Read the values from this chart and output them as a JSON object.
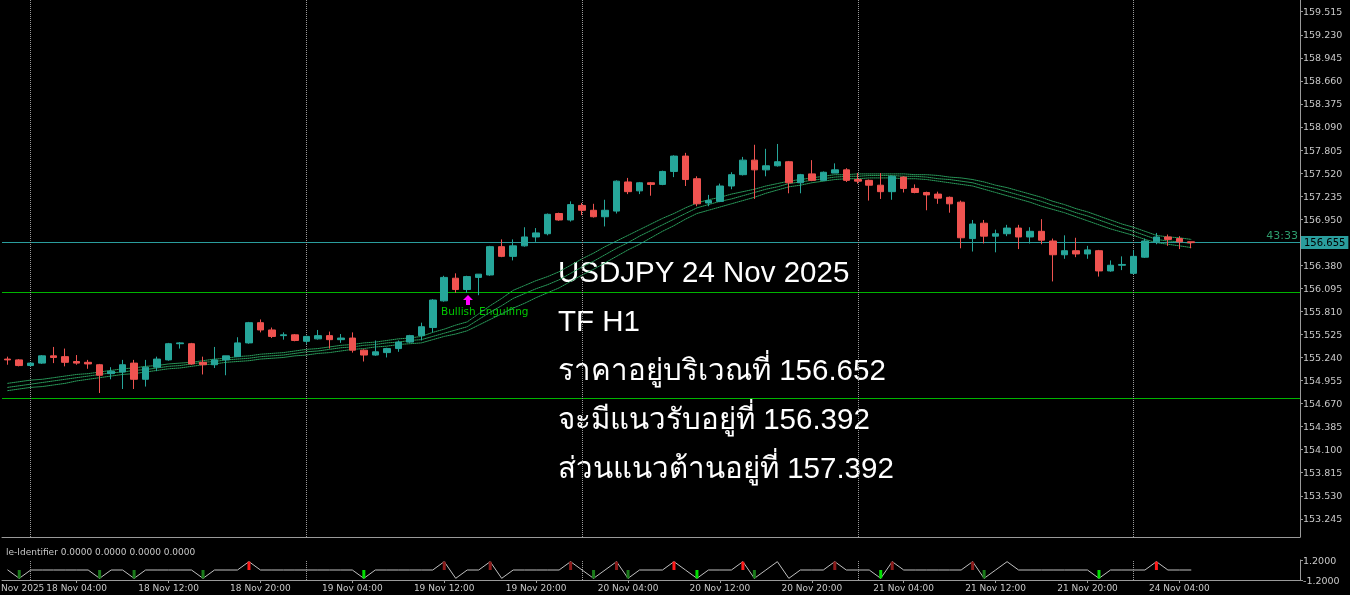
{
  "chart_data": [
    {
      "type": "candlestick",
      "categories": [
        null,
        null,
        null,
        null,
        null,
        null,
        null,
        null,
        null,
        null,
        null,
        null,
        null,
        null,
        null,
        null,
        null,
        null,
        null,
        null,
        null,
        null,
        null,
        null,
        null,
        null,
        null,
        null,
        null,
        null,
        null,
        null,
        null,
        null,
        null,
        null,
        null,
        null,
        null,
        null,
        null,
        null,
        null,
        null,
        null,
        null,
        null,
        null,
        null,
        null,
        null,
        null,
        null,
        null,
        null,
        null,
        null,
        null,
        null,
        null,
        null,
        null,
        null,
        null,
        null,
        null,
        null,
        null,
        null,
        null,
        null,
        null,
        null,
        null,
        null,
        null,
        null,
        null,
        null,
        null,
        null,
        null,
        null,
        null,
        null,
        null,
        null,
        null,
        null,
        null,
        null,
        null,
        null,
        null,
        null,
        null,
        null,
        null,
        null,
        null,
        null,
        null,
        null,
        null,
        null,
        null,
        null,
        null,
        null,
        null,
        null,
        null,
        null
      ],
      "ohlc": [
        [
          155.22,
          155.25,
          155.15,
          155.21
        ],
        [
          155.21,
          155.22,
          155.13,
          155.14
        ],
        [
          155.14,
          155.18,
          155.13,
          155.17
        ],
        [
          155.17,
          155.27,
          155.16,
          155.26
        ],
        [
          155.26,
          155.37,
          155.17,
          155.24
        ],
        [
          155.25,
          155.35,
          155.13,
          155.18
        ],
        [
          155.19,
          155.27,
          155.15,
          155.17
        ],
        [
          155.18,
          155.21,
          155.1,
          155.16
        ],
        [
          155.15,
          155.16,
          154.8,
          155.02
        ],
        [
          155.04,
          155.12,
          154.97,
          155.07
        ],
        [
          155.06,
          155.21,
          154.85,
          155.15
        ],
        [
          155.17,
          155.21,
          154.85,
          154.97
        ],
        [
          154.97,
          155.21,
          154.88,
          155.12
        ],
        [
          155.12,
          155.25,
          155.07,
          155.22
        ],
        [
          155.21,
          155.42,
          155.2,
          155.41
        ],
        [
          155.41,
          155.43,
          155.35,
          155.42
        ],
        [
          155.41,
          155.42,
          155.15,
          155.16
        ],
        [
          155.18,
          155.25,
          155.03,
          155.15
        ],
        [
          155.15,
          155.37,
          155.11,
          155.21
        ],
        [
          155.21,
          155.26,
          155.02,
          155.26
        ],
        [
          155.25,
          155.49,
          155.25,
          155.42
        ],
        [
          155.42,
          155.68,
          155.41,
          155.67
        ],
        [
          155.67,
          155.71,
          155.55,
          155.58
        ],
        [
          155.58,
          155.61,
          155.48,
          155.5
        ],
        [
          155.51,
          155.55,
          155.46,
          155.52
        ],
        [
          155.52,
          155.53,
          155.44,
          155.45
        ],
        [
          155.44,
          155.51,
          155.41,
          155.5
        ],
        [
          155.47,
          155.58,
          155.46,
          155.51
        ],
        [
          155.51,
          155.56,
          155.35,
          155.46
        ],
        [
          155.46,
          155.53,
          155.42,
          155.48
        ],
        [
          155.48,
          155.55,
          155.3,
          155.33
        ],
        [
          155.33,
          155.34,
          155.19,
          155.27
        ],
        [
          155.27,
          155.45,
          155.26,
          155.31
        ],
        [
          155.3,
          155.36,
          155.24,
          155.35
        ],
        [
          155.35,
          155.45,
          155.31,
          155.43
        ],
        [
          155.43,
          155.52,
          155.42,
          155.51
        ],
        [
          155.51,
          155.67,
          155.45,
          155.62
        ],
        [
          155.61,
          155.96,
          155.55,
          155.95
        ],
        [
          155.94,
          156.25,
          155.93,
          156.23
        ],
        [
          156.22,
          156.28,
          156.04,
          156.08
        ],
        [
          156.08,
          156.25,
          156.04,
          156.24
        ],
        [
          156.23,
          156.27,
          156.01,
          156.27
        ],
        [
          156.26,
          156.62,
          156.25,
          156.61
        ],
        [
          156.61,
          156.7,
          156.48,
          156.49
        ],
        [
          156.49,
          156.7,
          156.44,
          156.62
        ],
        [
          156.62,
          156.85,
          156.61,
          156.73
        ],
        [
          156.73,
          156.84,
          156.67,
          156.78
        ],
        [
          156.77,
          157.02,
          156.75,
          157.01
        ],
        [
          157.02,
          157.03,
          156.93,
          156.94
        ],
        [
          156.94,
          157.17,
          156.92,
          157.13
        ],
        [
          157.12,
          157.15,
          157.0,
          157.06
        ],
        [
          157.06,
          157.14,
          156.97,
          156.98
        ],
        [
          156.98,
          157.19,
          156.86,
          157.06
        ],
        [
          157.05,
          157.43,
          157.02,
          157.42
        ],
        [
          157.41,
          157.46,
          157.26,
          157.29
        ],
        [
          157.3,
          157.41,
          157.26,
          157.4
        ],
        [
          157.4,
          157.41,
          157.24,
          157.38
        ],
        [
          157.38,
          157.55,
          157.37,
          157.54
        ],
        [
          157.54,
          157.74,
          157.47,
          157.73
        ],
        [
          157.73,
          157.77,
          157.36,
          157.44
        ],
        [
          157.45,
          157.48,
          157.11,
          157.14
        ],
        [
          157.15,
          157.25,
          157.11,
          157.18
        ],
        [
          157.17,
          157.39,
          157.16,
          157.36
        ],
        [
          157.36,
          157.53,
          157.32,
          157.5
        ],
        [
          157.5,
          157.72,
          157.49,
          157.68
        ],
        [
          157.68,
          157.87,
          157.2,
          157.56
        ],
        [
          157.56,
          157.82,
          157.48,
          157.61
        ],
        [
          157.61,
          157.88,
          157.6,
          157.66
        ],
        [
          157.66,
          157.67,
          157.27,
          157.4
        ],
        [
          157.4,
          157.51,
          157.27,
          157.5
        ],
        [
          157.51,
          157.68,
          157.42,
          157.43
        ],
        [
          157.43,
          157.54,
          157.42,
          157.53
        ],
        [
          157.52,
          157.64,
          157.52,
          157.56
        ],
        [
          157.56,
          157.58,
          157.41,
          157.43
        ],
        [
          157.44,
          157.52,
          157.39,
          157.42
        ],
        [
          157.43,
          157.44,
          157.18,
          157.37
        ],
        [
          157.37,
          157.52,
          157.2,
          157.29
        ],
        [
          157.29,
          157.49,
          157.19,
          157.48
        ],
        [
          157.47,
          157.48,
          157.28,
          157.33
        ],
        [
          157.33,
          157.38,
          157.27,
          157.28
        ],
        [
          157.28,
          157.29,
          157.06,
          157.25
        ],
        [
          157.26,
          157.29,
          157.14,
          157.21
        ],
        [
          157.22,
          157.23,
          157.03,
          157.14
        ],
        [
          157.16,
          157.18,
          156.59,
          156.72
        ],
        [
          156.71,
          156.94,
          156.55,
          156.89
        ],
        [
          156.9,
          156.94,
          156.65,
          156.74
        ],
        [
          156.74,
          156.82,
          156.54,
          156.77
        ],
        [
          156.77,
          156.88,
          156.74,
          156.84
        ],
        [
          156.84,
          156.88,
          156.58,
          156.73
        ],
        [
          156.73,
          156.85,
          156.65,
          156.8
        ],
        [
          156.8,
          156.95,
          156.64,
          156.69
        ],
        [
          156.68,
          156.71,
          156.18,
          156.51
        ],
        [
          156.51,
          156.75,
          156.46,
          156.56
        ],
        [
          156.56,
          156.72,
          156.48,
          156.52
        ],
        [
          156.52,
          156.62,
          156.46,
          156.57
        ],
        [
          156.56,
          156.57,
          156.24,
          156.31
        ],
        [
          156.31,
          156.44,
          156.3,
          156.38
        ],
        [
          156.38,
          156.49,
          156.32,
          156.39
        ],
        [
          156.28,
          156.57,
          156.27,
          156.49
        ],
        [
          156.48,
          156.71,
          156.47,
          156.68
        ],
        [
          156.67,
          156.78,
          156.64,
          156.73
        ],
        [
          156.73,
          156.76,
          156.62,
          156.7
        ],
        [
          156.71,
          156.74,
          156.58,
          156.67
        ],
        [
          156.67,
          156.67,
          156.59,
          156.66
        ],
        null,
        null,
        null,
        null,
        null,
        null,
        null,
        null,
        null
      ],
      "series": [
        {
          "type": "line",
          "color": "#2a9d5c",
          "line_style": "dotted",
          "values": [
            154.92,
            154.94,
            154.96,
            154.97,
            154.99,
            155.01,
            155.03,
            155.04,
            155.06,
            155.08,
            155.1,
            155.11,
            155.13,
            155.14,
            155.16,
            155.17,
            155.18,
            155.2,
            155.22,
            155.23,
            155.25,
            155.26,
            155.28,
            155.29,
            155.3,
            155.32,
            155.34,
            155.35,
            155.37,
            155.39,
            155.4,
            155.42,
            155.43,
            155.45,
            155.47,
            155.48,
            155.5,
            155.55,
            155.59,
            155.64,
            155.68,
            155.78,
            155.88,
            155.97,
            156.07,
            156.13,
            156.19,
            156.24,
            156.3,
            156.38,
            156.46,
            156.53,
            156.61,
            156.68,
            156.75,
            156.82,
            156.89,
            156.96,
            157.02,
            157.09,
            157.15,
            157.19,
            157.22,
            157.26,
            157.29,
            157.32,
            157.36,
            157.39,
            157.42,
            157.44,
            157.46,
            157.48,
            157.5,
            157.5,
            157.51,
            157.51,
            157.51,
            157.51,
            157.51,
            157.5,
            157.5,
            157.49,
            157.47,
            157.46,
            157.44,
            157.41,
            157.37,
            157.34,
            157.3,
            157.26,
            157.22,
            157.17,
            157.13,
            157.08,
            157.04,
            156.99,
            156.94,
            156.89,
            156.85,
            156.8,
            156.75,
            156.73,
            156.72,
            156.7,
            null,
            null,
            null,
            null,
            null,
            null,
            null,
            null,
            null
          ]
        },
        {
          "type": "line",
          "color": "#2a9d5c",
          "line_style": "dotted",
          "values": [
            154.87,
            154.89,
            154.91,
            154.93,
            154.95,
            154.97,
            154.99,
            155.01,
            155.03,
            155.05,
            155.06,
            155.08,
            155.09,
            155.11,
            155.13,
            155.14,
            155.16,
            155.18,
            155.19,
            155.21,
            155.22,
            155.23,
            155.25,
            155.26,
            155.27,
            155.29,
            155.31,
            155.32,
            155.34,
            155.36,
            155.37,
            155.39,
            155.4,
            155.42,
            155.43,
            155.45,
            155.46,
            155.5,
            155.54,
            155.58,
            155.62,
            155.71,
            155.8,
            155.88,
            155.97,
            156.03,
            156.09,
            156.14,
            156.2,
            156.28,
            156.36,
            156.43,
            156.51,
            156.59,
            156.66,
            156.74,
            156.81,
            156.88,
            156.95,
            157.02,
            157.09,
            157.13,
            157.17,
            157.2,
            157.24,
            157.28,
            157.32,
            157.35,
            157.39,
            157.41,
            157.43,
            157.45,
            157.47,
            157.48,
            157.48,
            157.49,
            157.49,
            157.49,
            157.48,
            157.48,
            157.47,
            157.45,
            157.44,
            157.42,
            157.4,
            157.36,
            157.33,
            157.29,
            157.25,
            157.21,
            157.17,
            157.12,
            157.08,
            157.03,
            156.99,
            156.94,
            156.89,
            156.84,
            156.8,
            156.75,
            156.7,
            156.68,
            156.67,
            156.65,
            null,
            null,
            null,
            null,
            null,
            null,
            null,
            null,
            null
          ]
        },
        {
          "type": "line",
          "color": "#2a9d5c",
          "line_style": "dotted",
          "values": [
            154.83,
            154.85,
            154.87,
            154.88,
            154.9,
            154.92,
            154.95,
            154.97,
            154.99,
            155.01,
            155.03,
            155.04,
            155.06,
            155.08,
            155.1,
            155.11,
            155.13,
            155.15,
            155.16,
            155.18,
            155.19,
            155.2,
            155.22,
            155.23,
            155.24,
            155.26,
            155.27,
            155.29,
            155.3,
            155.32,
            155.34,
            155.35,
            155.37,
            155.38,
            155.4,
            155.41,
            155.42,
            155.46,
            155.5,
            155.53,
            155.57,
            155.64,
            155.71,
            155.78,
            155.85,
            155.91,
            155.98,
            156.04,
            156.1,
            156.18,
            156.26,
            156.33,
            156.41,
            156.49,
            156.57,
            156.64,
            156.72,
            156.8,
            156.87,
            156.95,
            157.02,
            157.06,
            157.1,
            157.14,
            157.18,
            157.22,
            157.27,
            157.31,
            157.35,
            157.37,
            157.4,
            157.42,
            157.44,
            157.45,
            157.45,
            157.46,
            157.46,
            157.46,
            157.45,
            157.45,
            157.44,
            157.42,
            157.4,
            157.38,
            157.36,
            157.32,
            157.28,
            157.24,
            157.2,
            157.16,
            157.11,
            157.07,
            157.03,
            156.98,
            156.93,
            156.88,
            156.83,
            156.79,
            156.75,
            156.7,
            156.66,
            156.64,
            156.62,
            156.6,
            null,
            null,
            null,
            null,
            null,
            null,
            null,
            null,
            null
          ]
        }
      ],
      "tick_labels": "y",
      "grid": "x",
      "ylim": [
        153.02,
        159.66
      ],
      "yticks": [
        153.245,
        {
          "value": 153.53,
          "label": "153.530"
        },
        153.815,
        {
          "value": 154.1,
          "label": "154.100"
        },
        154.385,
        {
          "value": 154.67,
          "label": "154.670"
        },
        154.955,
        {
          "value": 155.24,
          "label": "155.240"
        },
        155.525,
        {
          "value": 155.81,
          "label": "155.810"
        },
        156.095,
        {
          "value": 156.38,
          "label": "156.380"
        },
        {
          "value": 156.95,
          "label": "156.950"
        },
        157.235,
        {
          "value": 157.52,
          "label": "157.520"
        },
        157.805,
        {
          "value": 158.09,
          "label": "158.090"
        },
        158.375,
        {
          "value": 158.66,
          "label": "158.660"
        },
        158.945,
        {
          "value": 159.23,
          "label": "159.230"
        },
        159.515
      ],
      "ref_lines": [
        {
          "axis": "y",
          "value": 156.655,
          "label": "156.655",
          "color": "#2a9d9d"
        },
        {
          "axis": "y",
          "value": 156.05,
          "color": "#00b400"
        },
        {
          "axis": "y",
          "value": 154.73,
          "color": "#00b400"
        }
      ],
      "annotations": [
        "USDJPY 24 Nov 2025",
        "TF H1",
        "ราคาอยู่บริเวณที่ 156.652",
        "จะมีแนวรับอยู่ที่ 156.392",
        "ส่วนแนวต้านอยู่ที่ 157.392",
        "Bullish Engulfing",
        {
          "text": "43:33",
          "y": 156.655
        }
      ]
    },
    {
      "type": "line",
      "title": "le-Identifier 0.0000 0.0000 0.0000 0.0000",
      "categories": [
        null,
        null,
        null,
        null,
        null,
        null,
        "18 Nov 04:00",
        null,
        null,
        null,
        null,
        null,
        null,
        null,
        "18 Nov 12:00",
        null,
        null,
        null,
        null,
        null,
        null,
        null,
        "18 Nov 20:00",
        null,
        null,
        null,
        null,
        null,
        null,
        null,
        "19 Nov 04:00",
        null,
        null,
        null,
        null,
        null,
        null,
        null,
        "19 Nov 12:00",
        null,
        null,
        null,
        null,
        null,
        null,
        null,
        "19 Nov 20:00",
        null,
        null,
        null,
        null,
        null,
        null,
        null,
        "20 Nov 04:00",
        null,
        null,
        null,
        null,
        null,
        null,
        null,
        "20 Nov 12:00",
        null,
        null,
        null,
        null,
        null,
        null,
        null,
        "20 Nov 20:00",
        null,
        null,
        null,
        null,
        null,
        null,
        null,
        "21 Nov 04:00",
        null,
        null,
        null,
        null,
        null,
        null,
        null,
        "21 Nov 12:00",
        null,
        null,
        null,
        null,
        null,
        null,
        null,
        "21 Nov 20:00",
        null,
        null,
        null,
        null,
        null,
        null,
        null,
        "24 Nov 04:00",
        null,
        null,
        null,
        null,
        null,
        null,
        null,
        null,
        null,
        null
      ],
      "series": [
        {
          "type": "line",
          "color": "#c0c0c0",
          "values": [
            0,
            -1,
            0,
            0,
            0,
            0,
            0,
            0,
            -1,
            0,
            0,
            -1,
            0,
            0,
            0,
            0,
            0,
            -1,
            0,
            0,
            0,
            1,
            0,
            0,
            0,
            0,
            0,
            0,
            0,
            0,
            0,
            -1,
            0,
            0,
            0,
            0,
            0,
            0,
            1,
            -1,
            0,
            0,
            1,
            -1,
            0,
            0,
            0,
            0,
            0,
            1,
            0,
            -1,
            0,
            1,
            -1,
            0,
            0,
            0,
            1,
            0,
            -1,
            0,
            0,
            0,
            1,
            -1,
            0,
            1,
            -1,
            0,
            0,
            0,
            1,
            0,
            0,
            0,
            -1,
            1,
            0,
            0,
            0,
            0,
            0,
            0,
            1,
            -1,
            0,
            1,
            0,
            0,
            0,
            0,
            0,
            0,
            0,
            -1,
            0,
            0,
            0,
            0,
            1,
            0,
            0,
            0,
            null,
            null,
            null,
            null,
            null,
            null,
            null,
            null,
            null
          ]
        },
        {
          "type": "bar",
          "color": "#8b1a1a",
          "values": [
            null,
            null,
            null,
            null,
            null,
            null,
            null,
            null,
            null,
            null,
            null,
            null,
            null,
            null,
            null,
            null,
            null,
            null,
            null,
            null,
            null,
            null,
            null,
            null,
            null,
            null,
            null,
            null,
            null,
            null,
            null,
            null,
            null,
            null,
            null,
            null,
            null,
            null,
            1,
            null,
            null,
            null,
            1,
            null,
            null,
            null,
            null,
            null,
            null,
            1,
            null,
            null,
            null,
            1,
            null,
            null,
            null,
            null,
            null,
            null,
            null,
            null,
            null,
            null,
            null,
            null,
            null,
            null,
            null,
            null,
            null,
            null,
            1,
            null,
            null,
            null,
            null,
            1,
            null,
            null,
            null,
            null,
            null,
            null,
            1,
            null,
            null,
            null,
            null,
            null,
            null,
            null,
            null,
            null,
            null,
            null,
            null,
            null,
            null,
            null,
            null,
            null,
            null,
            null,
            null,
            null,
            null,
            null,
            null,
            null,
            null,
            null,
            null
          ]
        },
        {
          "type": "bar",
          "color": "#1a7a1a",
          "values": [
            null,
            -1,
            null,
            null,
            null,
            null,
            null,
            null,
            -1,
            null,
            null,
            -1,
            null,
            null,
            null,
            null,
            null,
            -1,
            null,
            null,
            null,
            null,
            null,
            null,
            null,
            null,
            null,
            null,
            null,
            null,
            null,
            null,
            null,
            null,
            null,
            null,
            null,
            null,
            null,
            null,
            null,
            null,
            null,
            null,
            null,
            null,
            null,
            null,
            null,
            null,
            null,
            -1,
            null,
            null,
            -1,
            null,
            null,
            null,
            null,
            null,
            null,
            null,
            null,
            null,
            null,
            -1,
            null,
            null,
            null,
            null,
            null,
            null,
            null,
            null,
            null,
            null,
            null,
            null,
            null,
            null,
            null,
            null,
            null,
            null,
            null,
            -1,
            null,
            null,
            null,
            null,
            null,
            null,
            null,
            null,
            null,
            null,
            null,
            null,
            null,
            null,
            null,
            null,
            null,
            null,
            null,
            null,
            null,
            null,
            null,
            null,
            null,
            null,
            null
          ]
        },
        {
          "type": "bar",
          "color": "#ff1a1a",
          "values": [
            null,
            null,
            null,
            null,
            null,
            null,
            null,
            null,
            null,
            null,
            null,
            null,
            null,
            null,
            null,
            null,
            null,
            null,
            null,
            null,
            null,
            1,
            null,
            null,
            null,
            null,
            null,
            null,
            null,
            null,
            null,
            null,
            null,
            null,
            null,
            null,
            null,
            null,
            null,
            null,
            null,
            null,
            null,
            null,
            null,
            null,
            null,
            null,
            null,
            null,
            null,
            null,
            null,
            null,
            null,
            null,
            null,
            null,
            1,
            null,
            null,
            null,
            null,
            null,
            1,
            null,
            null,
            null,
            null,
            null,
            null,
            null,
            null,
            null,
            null,
            null,
            null,
            null,
            null,
            null,
            null,
            null,
            null,
            null,
            null,
            null,
            null,
            null,
            null,
            null,
            null,
            null,
            null,
            null,
            null,
            null,
            null,
            null,
            null,
            null,
            1,
            null,
            null,
            null,
            null,
            null,
            null,
            null,
            null,
            null,
            null,
            null,
            null
          ]
        },
        {
          "type": "bar",
          "color": "#00e000",
          "values": [
            null,
            null,
            null,
            null,
            null,
            null,
            null,
            null,
            null,
            null,
            null,
            null,
            null,
            null,
            null,
            null,
            null,
            null,
            null,
            null,
            null,
            null,
            null,
            null,
            null,
            null,
            null,
            null,
            null,
            null,
            null,
            -1,
            null,
            null,
            null,
            null,
            null,
            null,
            null,
            null,
            null,
            null,
            null,
            null,
            null,
            null,
            null,
            null,
            null,
            null,
            null,
            null,
            null,
            null,
            null,
            null,
            null,
            null,
            null,
            null,
            -1,
            null,
            null,
            null,
            null,
            null,
            null,
            null,
            null,
            null,
            null,
            null,
            null,
            null,
            null,
            null,
            -1,
            null,
            null,
            null,
            null,
            null,
            null,
            null,
            null,
            null,
            null,
            null,
            null,
            null,
            null,
            null,
            null,
            null,
            null,
            -1,
            null,
            null,
            null,
            null,
            null,
            null,
            null,
            null,
            null,
            null,
            null,
            null,
            null,
            null,
            null,
            null,
            null
          ]
        }
      ],
      "grid": "x",
      "ylim": [
        -1.2,
        1.2
      ],
      "yticks": [
        {
          "value": -1.2,
          "label": "-1.2000"
        },
        {
          "value": 1.2,
          "label": "1.2000"
        }
      ],
      "annotations": [
        "Nov 2025"
      ]
    }
  ]
}
